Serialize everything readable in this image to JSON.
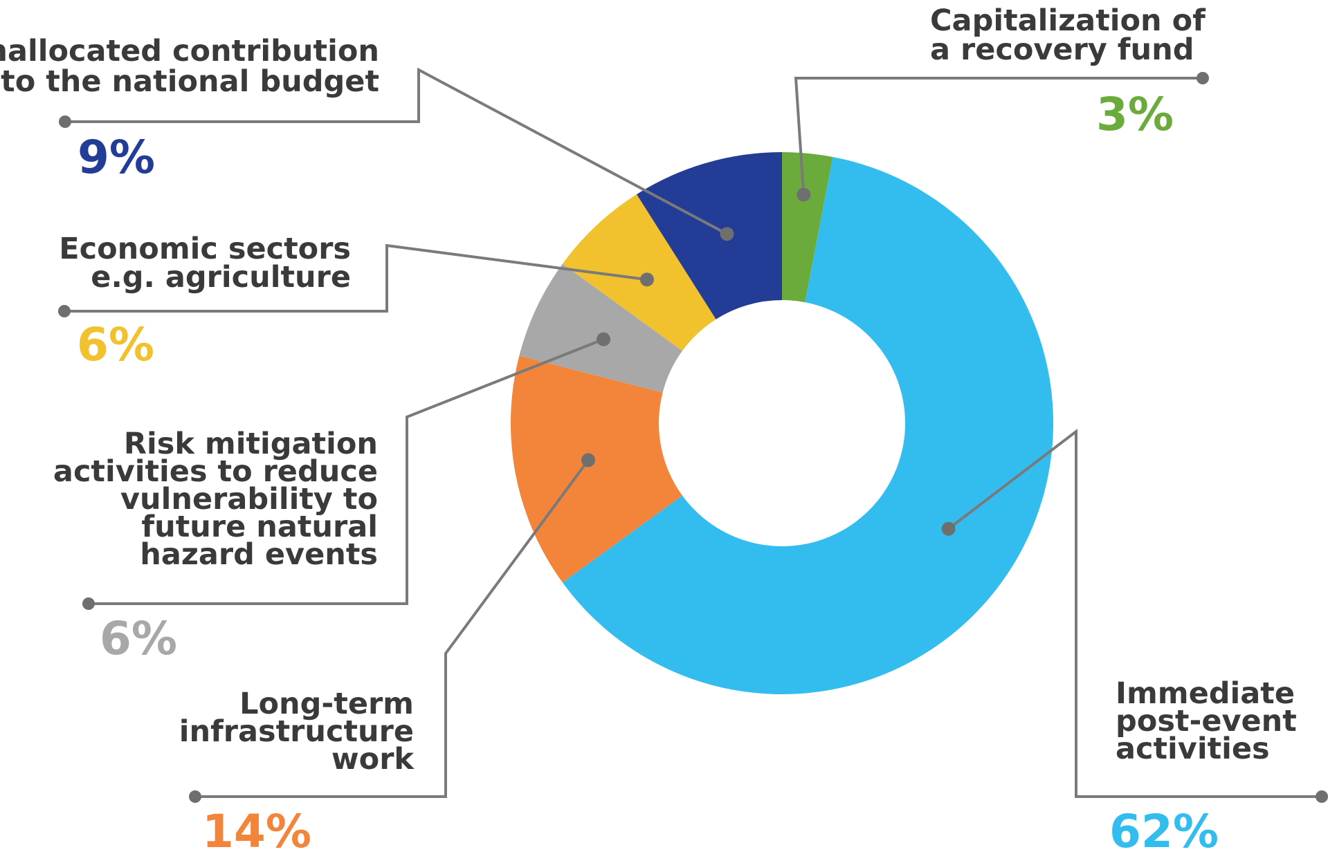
{
  "chart_data": {
    "type": "pie",
    "donut": true,
    "start_angle_deg": 0,
    "direction": "clockwise",
    "title": "",
    "categories": [
      "Capitalization of a recovery fund",
      "Immediate post-event activities",
      "Long-term infrastructure work",
      "Risk mitigation activities to reduce vulnerability to future natural hazard events",
      "Economic sectors e.g. agriculture",
      "Unallocated contribution to the national budget"
    ],
    "values": [
      3,
      62,
      14,
      6,
      6,
      9
    ],
    "slices": [
      {
        "label_lines": [
          "Capitalization of",
          "a recovery fund"
        ],
        "value": 3,
        "value_label": "3%",
        "color": "#6aab3c"
      },
      {
        "label_lines": [
          "Immediate",
          "post-event",
          "activities"
        ],
        "value": 62,
        "value_label": "62%",
        "color": "#33bdef"
      },
      {
        "label_lines": [
          "Long-term",
          "infrastructure",
          "work"
        ],
        "value": 14,
        "value_label": "14%",
        "color": "#f28539"
      },
      {
        "label_lines": [
          "Risk mitigation",
          "activities to reduce",
          "vulnerability to",
          "future natural",
          "hazard events"
        ],
        "value": 6,
        "value_label": "6%",
        "color": "#a8a8a8"
      },
      {
        "label_lines": [
          "Economic sectors",
          "e.g. agriculture"
        ],
        "value": 6,
        "value_label": "6%",
        "color": "#f2c12e"
      },
      {
        "label_lines": [
          "Unallocated contribution",
          "to the national budget"
        ],
        "value": 9,
        "value_label": "9%",
        "color": "#233c96"
      }
    ]
  }
}
